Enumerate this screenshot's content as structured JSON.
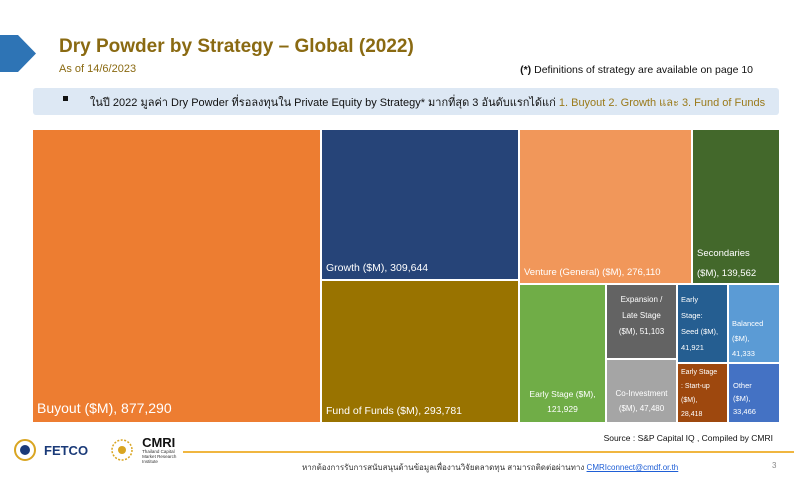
{
  "header": {
    "title": "Dry Powder by Strategy – Global (2022)",
    "as_of": "As of 14/6/2023",
    "definition_mark": "(*)",
    "definition_note": "Definitions of strategy are available on page 10"
  },
  "callout": {
    "text": "ในปี 2022 มูลค่า Dry Powder ที่รอลงทุนใน Private Equity by Strategy* มากที่สุด 3 อันดับแรกได้แก่",
    "highlight": "1. Buyout 2. Growth และ 3. Fund of Funds"
  },
  "chart_data": {
    "type": "treemap",
    "title": "",
    "unit": "$M",
    "items": [
      {
        "name": "Buyout ($M)",
        "value": 877290,
        "label": "Buyout ($M), 877,290",
        "color": "#ed7d31"
      },
      {
        "name": "Growth ($M)",
        "value": 309644,
        "label": "Growth ($M), 309,644",
        "color": "#264478"
      },
      {
        "name": "Fund of Funds ($M)",
        "value": 293781,
        "label": "Fund of Funds ($M), 293,781",
        "color": "#997300"
      },
      {
        "name": "Venture (General) ($M)",
        "value": 276110,
        "label": "Venture (General) ($M), 276,110",
        "color": "#f1975a"
      },
      {
        "name": "Secondaries",
        "value": 139562,
        "label": "Secondaries ($M), 139,562",
        "color": "#43682b"
      },
      {
        "name": "Early Stage ($M)",
        "value": 121929,
        "label": "Early Stage ($M), 121,929",
        "color": "#70ad47"
      },
      {
        "name": "Expansion / Late Stage ($M)",
        "value": 51103,
        "label": "Expansion / Late Stage ($M), 51,103",
        "color": "#636363"
      },
      {
        "name": "Co-Investment ($M)",
        "value": 47480,
        "label": "Co-Investment ($M), 47,480",
        "color": "#a5a5a5"
      },
      {
        "name": "Early Stage: Seed ($M)",
        "value": 41921,
        "label": "Early Stage: Seed ($M), 41,921",
        "color": "#255e91"
      },
      {
        "name": "Balanced ($M)",
        "value": 41333,
        "label": "Balanced ($M), 41,333",
        "color": "#5b9bd5"
      },
      {
        "name": "Early Stage : Start-up ($M)",
        "value": 28418,
        "label": "Early Stage : Start-up ($M), 28,418",
        "color": "#9e480e"
      },
      {
        "name": "Other ($M)",
        "value": 33466,
        "label": "Other ($M), 33,466",
        "color": "#4472c4"
      }
    ]
  },
  "source": "Source : S&P Capital IQ , Compiled by CMRI",
  "logos": {
    "fetco": "FETCO",
    "cmri": "CMRI",
    "cmri_sub": "Thailand Capital Market Research Institute"
  },
  "footer": {
    "text": "หากต้องการรับการสนับสนุนด้านข้อมูลเพื่องานวิจัยตลาดทุน สามารถติดต่อผ่านทาง",
    "email": "CMRIconnect@cmdf.or.th",
    "page": "3"
  }
}
